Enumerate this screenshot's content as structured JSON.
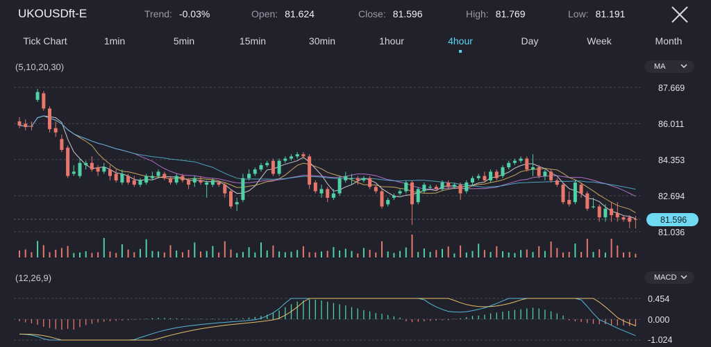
{
  "header": {
    "symbol": "UKOUSDft-E",
    "trend_label": "Trend:",
    "trend_value": "-0.03%",
    "open_label": "Open:",
    "open_value": "81.624",
    "close_label": "Close:",
    "close_value": "81.596",
    "high_label": "High:",
    "high_value": "81.769",
    "low_label": "Low:",
    "low_value": "81.191"
  },
  "tabs": [
    "Tick Chart",
    "1min",
    "5min",
    "15min",
    "30min",
    "1hour",
    "4hour",
    "Day",
    "Week",
    "Month"
  ],
  "active_tab": "4hour",
  "price_panel": {
    "ma_params": "(5,10,20,30)",
    "dropdown": "MA",
    "axis_labels": [
      "87.669",
      "86.011",
      "84.353",
      "82.694",
      "81.036"
    ],
    "current_price": "81.596"
  },
  "macd_panel": {
    "params": "(12,26,9)",
    "dropdown": "MACD",
    "axis_labels": [
      "0.454",
      "0.000",
      "-1.024"
    ]
  },
  "colors": {
    "background": "#21212b",
    "up": "#4fd1a5",
    "down": "#e8776b",
    "accent": "#5fd3f3",
    "ma5": "#e8e8ee",
    "ma10": "#e6c06a",
    "ma20": "#c77ee0",
    "ma30": "#56b9d6"
  },
  "chart_data": {
    "type": "candlestick",
    "timeframe": "4hour",
    "ylim": [
      81.036,
      87.669
    ],
    "candles_ohlc": [
      [
        86.11,
        85.92,
        86.3,
        85.8
      ],
      [
        86.0,
        85.85,
        86.2,
        85.7
      ],
      [
        85.9,
        85.88,
        86.1,
        85.7
      ],
      [
        87.1,
        87.46,
        87.6,
        87.0
      ],
      [
        87.4,
        86.7,
        87.5,
        86.6
      ],
      [
        86.7,
        85.75,
        86.8,
        85.6
      ],
      [
        85.8,
        85.6,
        86.1,
        85.4
      ],
      [
        85.3,
        84.8,
        85.5,
        84.7
      ],
      [
        84.9,
        83.6,
        85.0,
        83.5
      ],
      [
        83.7,
        83.8,
        84.1,
        83.6
      ],
      [
        83.6,
        84.2,
        84.4,
        83.5
      ],
      [
        84.1,
        84.2,
        84.3,
        83.9
      ],
      [
        84.2,
        83.9,
        84.5,
        83.8
      ],
      [
        84.0,
        83.8,
        84.1,
        83.6
      ],
      [
        83.8,
        84.0,
        84.2,
        83.7
      ],
      [
        83.9,
        83.6,
        84.1,
        83.4
      ],
      [
        83.7,
        83.4,
        83.9,
        83.3
      ],
      [
        83.3,
        83.7,
        83.9,
        83.2
      ],
      [
        83.6,
        83.3,
        83.7,
        83.2
      ],
      [
        83.4,
        83.2,
        83.6,
        83.1
      ],
      [
        83.2,
        83.4,
        83.5,
        83.1
      ],
      [
        83.3,
        83.6,
        83.7,
        83.2
      ],
      [
        83.5,
        83.6,
        83.8,
        83.4
      ],
      [
        83.6,
        83.8,
        83.9,
        83.5
      ],
      [
        83.7,
        83.5,
        83.8,
        83.4
      ],
      [
        83.5,
        83.3,
        83.6,
        83.2
      ],
      [
        83.3,
        83.6,
        83.7,
        83.2
      ],
      [
        83.6,
        83.4,
        83.7,
        83.3
      ],
      [
        83.4,
        83.2,
        83.5,
        83.0
      ],
      [
        83.3,
        83.5,
        83.6,
        83.1
      ],
      [
        83.4,
        83.3,
        83.6,
        83.2
      ],
      [
        83.2,
        83.3,
        83.4,
        82.6
      ],
      [
        83.2,
        83.4,
        83.5,
        83.1
      ],
      [
        83.3,
        83.2,
        83.4,
        83.1
      ],
      [
        83.2,
        82.8,
        83.3,
        82.6
      ],
      [
        82.9,
        82.2,
        83.0,
        82.1
      ],
      [
        82.3,
        82.4,
        82.6,
        82.0
      ],
      [
        82.5,
        83.5,
        83.7,
        82.4
      ],
      [
        83.5,
        83.7,
        83.9,
        83.4
      ],
      [
        83.7,
        83.9,
        84.0,
        83.6
      ],
      [
        83.9,
        84.1,
        84.2,
        83.8
      ],
      [
        84.1,
        84.2,
        84.3,
        84.0
      ],
      [
        84.3,
        83.7,
        84.4,
        83.6
      ],
      [
        83.7,
        84.3,
        84.4,
        83.6
      ],
      [
        84.3,
        84.4,
        84.5,
        84.2
      ],
      [
        84.4,
        84.5,
        84.6,
        84.3
      ],
      [
        84.5,
        84.6,
        84.7,
        84.4
      ],
      [
        84.6,
        84.5,
        84.7,
        84.4
      ],
      [
        84.5,
        83.2,
        84.6,
        83.0
      ],
      [
        83.3,
        82.9,
        83.4,
        82.8
      ],
      [
        82.8,
        83.0,
        83.2,
        82.6
      ],
      [
        83.0,
        82.6,
        83.1,
        82.4
      ],
      [
        82.6,
        82.8,
        83.0,
        82.5
      ],
      [
        82.8,
        83.5,
        83.6,
        82.7
      ],
      [
        83.4,
        83.6,
        83.8,
        83.3
      ],
      [
        83.5,
        83.5,
        83.7,
        83.2
      ],
      [
        83.5,
        83.4,
        83.6,
        83.2
      ],
      [
        83.4,
        83.5,
        83.6,
        83.3
      ],
      [
        83.5,
        83.1,
        83.6,
        83.0
      ],
      [
        83.1,
        82.9,
        83.2,
        82.8
      ],
      [
        82.9,
        82.2,
        83.0,
        82.1
      ],
      [
        82.3,
        82.5,
        82.6,
        82.2
      ],
      [
        82.6,
        82.7,
        82.8,
        82.5
      ],
      [
        82.8,
        82.9,
        83.0,
        82.7
      ],
      [
        82.9,
        83.3,
        83.4,
        82.8
      ],
      [
        83.3,
        82.3,
        83.4,
        81.36
      ],
      [
        82.4,
        83.0,
        83.1,
        82.3
      ],
      [
        82.9,
        83.2,
        83.3,
        82.8
      ],
      [
        83.1,
        83.1,
        83.2,
        83.0
      ],
      [
        83.1,
        83.0,
        83.2,
        82.9
      ],
      [
        83.0,
        83.3,
        83.4,
        82.9
      ],
      [
        83.3,
        83.1,
        83.4,
        83.0
      ],
      [
        83.1,
        83.2,
        83.3,
        83.0
      ],
      [
        83.2,
        82.8,
        83.3,
        82.5
      ],
      [
        82.9,
        83.3,
        83.4,
        82.8
      ],
      [
        83.3,
        83.5,
        83.6,
        83.2
      ],
      [
        83.5,
        83.6,
        83.7,
        83.4
      ],
      [
        83.6,
        83.4,
        83.8,
        83.3
      ],
      [
        83.4,
        83.8,
        83.9,
        83.3
      ],
      [
        83.8,
        83.5,
        83.9,
        83.4
      ],
      [
        83.6,
        84.0,
        84.1,
        83.5
      ],
      [
        84.0,
        84.2,
        84.3,
        83.9
      ],
      [
        84.2,
        84.3,
        84.4,
        84.1
      ],
      [
        84.3,
        84.4,
        84.5,
        84.2
      ],
      [
        84.4,
        83.9,
        84.5,
        83.8
      ],
      [
        83.9,
        84.0,
        84.6,
        83.6
      ],
      [
        84.0,
        83.6,
        84.1,
        83.5
      ],
      [
        83.6,
        83.8,
        83.9,
        83.4
      ],
      [
        83.8,
        83.4,
        83.9,
        83.3
      ],
      [
        83.4,
        83.2,
        83.5,
        83.1
      ],
      [
        83.2,
        82.4,
        83.3,
        82.3
      ],
      [
        82.5,
        82.3,
        82.9,
        82.2
      ],
      [
        82.4,
        83.3,
        83.4,
        82.3
      ],
      [
        83.2,
        82.8,
        83.3,
        82.6
      ],
      [
        82.8,
        82.1,
        82.9,
        82.0
      ],
      [
        82.2,
        82.2,
        82.6,
        82.1
      ],
      [
        82.2,
        81.7,
        82.3,
        81.5
      ],
      [
        81.7,
        82.1,
        82.3,
        81.5
      ],
      [
        82.1,
        81.8,
        82.4,
        81.5
      ],
      [
        81.9,
        81.7,
        82.4,
        81.5
      ],
      [
        81.7,
        81.6,
        81.8,
        81.5
      ],
      [
        81.7,
        81.5,
        81.8,
        81.2
      ],
      [
        81.62,
        81.6,
        81.77,
        81.19
      ]
    ],
    "volume_relative": [
      0.28,
      0.32,
      0.21,
      0.66,
      0.49,
      0.21,
      0.31,
      0.38,
      0.46,
      0.18,
      0.2,
      0.25,
      0.18,
      0.21,
      0.78,
      0.24,
      0.18,
      0.53,
      0.32,
      0.21,
      0.34,
      0.73,
      0.26,
      0.24,
      0.2,
      0.49,
      0.28,
      0.21,
      0.31,
      0.6,
      0.24,
      0.26,
      0.46,
      0.2,
      0.65,
      0.32,
      0.18,
      0.22,
      0.41,
      0.2,
      0.6,
      0.28,
      0.48,
      0.24,
      0.21,
      0.23,
      0.3,
      0.45,
      0.21,
      0.2,
      0.24,
      0.27,
      0.42,
      0.28,
      0.35,
      0.26,
      0.16,
      0.38,
      0.31,
      0.2,
      0.65,
      0.24,
      0.18,
      0.26,
      0.4,
      0.92,
      0.22,
      0.36,
      0.22,
      0.3,
      0.34,
      0.44,
      0.16,
      0.48,
      0.2,
      0.26,
      0.55,
      0.3,
      0.22,
      0.45,
      0.25,
      0.2,
      0.18,
      0.3,
      0.32,
      0.22,
      0.45,
      0.26,
      0.64,
      0.38,
      0.2,
      0.22,
      0.56,
      0.22,
      0.75,
      0.22,
      0.33,
      0.2,
      0.75,
      0.48,
      0.2,
      0.22,
      0.15
    ],
    "macd_ylim": [
      -1.024,
      0.454
    ],
    "macd_hist_rel": [
      -0.1,
      -0.15,
      -0.2,
      -0.26,
      -0.36,
      -0.42,
      -0.48,
      -0.5,
      -0.46,
      -0.5,
      -0.38,
      -0.28,
      -0.22,
      -0.15,
      -0.12,
      -0.1,
      -0.08,
      -0.06,
      -0.04,
      -0.02,
      0.01,
      0.03,
      0.05,
      0.07,
      0.06,
      0.05,
      0.04,
      0.03,
      0.02,
      0.01,
      0.02,
      0.01,
      0.03,
      0.02,
      0.02,
      0.03,
      0.04,
      0.05,
      0.08,
      0.11,
      0.16,
      0.22,
      0.3,
      0.42,
      0.58,
      0.72,
      0.85,
      0.9,
      0.96,
      0.94,
      0.9,
      0.84,
      0.78,
      0.72,
      0.66,
      0.58,
      0.52,
      0.44,
      0.38,
      0.3,
      0.26,
      0.2,
      0.14,
      0.08,
      -0.1,
      -0.14,
      -0.12,
      -0.1,
      -0.08,
      -0.06,
      -0.05,
      -0.04,
      0.02,
      0.05,
      0.1,
      0.16,
      0.18,
      0.22,
      0.28,
      0.32,
      0.36,
      0.4,
      0.45,
      0.48,
      0.52,
      0.55,
      0.52,
      0.46,
      0.38,
      0.28,
      0.18,
      -0.05,
      -0.1,
      -0.14,
      -0.18,
      -0.22,
      -0.24,
      -0.24,
      -0.28,
      -0.3,
      -0.3,
      -0.32,
      -0.34
    ]
  }
}
